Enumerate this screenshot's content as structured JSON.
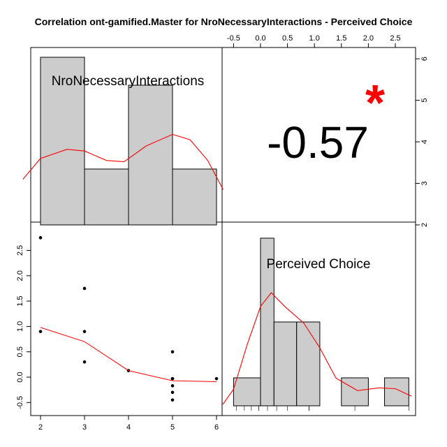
{
  "chart_data": {
    "type": "pairs-correlation-matrix",
    "title": "Correlation ont-gamified.Master for NroNecessaryInteractions - Perceived Choice",
    "variables": [
      "NroNecessaryInteractions",
      "Perceived Choice"
    ],
    "correlation": {
      "value": "-0.57",
      "significance": "*",
      "significance_color": "#ff0000"
    },
    "histogram_x": {
      "label": "NroNecessaryInteractions",
      "bins": [
        [
          2,
          3
        ],
        [
          3,
          4
        ],
        [
          4,
          5
        ],
        [
          5,
          6
        ]
      ],
      "counts": [
        6,
        2,
        5,
        2
      ],
      "density_color": "#ff0000"
    },
    "histogram_y": {
      "label": "Perceived Choice",
      "bins": [
        [
          -0.5,
          0.0
        ],
        [
          0.0,
          0.25
        ],
        [
          0.25,
          0.67
        ],
        [
          0.67,
          1.1
        ],
        [
          1.1,
          1.5
        ],
        [
          1.5,
          2.0
        ],
        [
          2.0,
          2.3
        ],
        [
          2.3,
          2.75
        ]
      ],
      "counts": [
        1,
        6,
        3,
        3,
        0,
        1,
        0,
        1
      ],
      "density_color": "#ff0000"
    },
    "scatter": {
      "x": [
        2,
        2,
        3,
        3,
        3,
        4,
        5,
        5,
        5,
        5,
        5,
        5,
        6
      ],
      "y": [
        2.75,
        0.9,
        1.75,
        0.9,
        0.3,
        0.13,
        0.5,
        -0.03,
        -0.17,
        -0.3,
        -0.45,
        -0.03,
        -0.03
      ],
      "point_color": "#000000",
      "smooth_color": "#ff0000",
      "smooth": [
        [
          2,
          0.98
        ],
        [
          3,
          0.7
        ],
        [
          4,
          0.13
        ],
        [
          5,
          -0.07
        ],
        [
          6,
          -0.09
        ]
      ]
    },
    "axes": {
      "bottom_x_ticks": [
        "2",
        "3",
        "4",
        "5",
        "6"
      ],
      "bottom_x_range": [
        2,
        6
      ],
      "left_y_ticks": [
        "-0.5",
        "0.0",
        "0.5",
        "1.0",
        "1.5",
        "2.0",
        "2.5"
      ],
      "left_y_range": [
        -0.5,
        2.5
      ],
      "top_x_ticks": [
        "-0.5",
        "0.0",
        "0.5",
        "1.0",
        "1.5",
        "2.0",
        "2.5"
      ],
      "top_x_range": [
        -0.5,
        2.5
      ],
      "right_y_ticks": [
        "2",
        "3",
        "4",
        "5",
        "6"
      ],
      "right_y_range": [
        2,
        6
      ]
    },
    "grid": false,
    "legend": "none"
  }
}
